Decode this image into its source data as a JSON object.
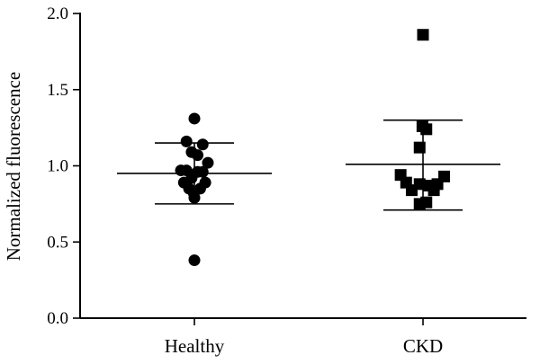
{
  "chart_data": {
    "type": "scatter",
    "title": "",
    "xlabel": "",
    "ylabel": "Normalized fluorescence",
    "ylim": [
      0,
      2.0
    ],
    "yticks": [
      0.0,
      0.5,
      1.0,
      1.5,
      2.0
    ],
    "ytick_labels": [
      "0.0",
      "0.5",
      "1.0",
      "1.5",
      "2.0"
    ],
    "categories": [
      "Healthy",
      "CKD"
    ],
    "grid": false,
    "legend": "none",
    "series": [
      {
        "category": "Healthy",
        "marker": "circle",
        "color": "#000000",
        "mean": 0.95,
        "sd_upper": 1.15,
        "sd_lower": 0.75,
        "points": [
          {
            "offset": 0.0,
            "y": 1.31
          },
          {
            "offset": -0.4,
            "y": 1.16
          },
          {
            "offset": -0.14,
            "y": 1.09
          },
          {
            "offset": 0.16,
            "y": 1.07
          },
          {
            "offset": 0.42,
            "y": 1.14
          },
          {
            "offset": 0.68,
            "y": 1.02
          },
          {
            "offset": -0.68,
            "y": 0.97
          },
          {
            "offset": -0.4,
            "y": 0.97
          },
          {
            "offset": 0.16,
            "y": 0.96
          },
          {
            "offset": 0.42,
            "y": 0.96
          },
          {
            "offset": -0.14,
            "y": 0.92
          },
          {
            "offset": -0.53,
            "y": 0.89
          },
          {
            "offset": 0.55,
            "y": 0.89
          },
          {
            "offset": -0.27,
            "y": 0.85
          },
          {
            "offset": 0.29,
            "y": 0.85
          },
          {
            "offset": -0.03,
            "y": 0.82
          },
          {
            "offset": 0.0,
            "y": 0.79
          },
          {
            "offset": 0.0,
            "y": 0.38
          }
        ]
      },
      {
        "category": "CKD",
        "marker": "square",
        "color": "#000000",
        "mean": 1.01,
        "sd_upper": 1.3,
        "sd_lower": 0.71,
        "points": [
          {
            "offset": 0.0,
            "y": 1.86
          },
          {
            "offset": -0.03,
            "y": 1.26
          },
          {
            "offset": 0.17,
            "y": 1.24
          },
          {
            "offset": -0.17,
            "y": 1.12
          },
          {
            "offset": -1.13,
            "y": 0.94
          },
          {
            "offset": -0.85,
            "y": 0.89
          },
          {
            "offset": -0.57,
            "y": 0.84
          },
          {
            "offset": -0.17,
            "y": 0.88
          },
          {
            "offset": 0.31,
            "y": 0.87
          },
          {
            "offset": 0.55,
            "y": 0.84
          },
          {
            "offset": 0.73,
            "y": 0.88
          },
          {
            "offset": 1.07,
            "y": 0.93
          },
          {
            "offset": -0.17,
            "y": 0.75
          },
          {
            "offset": 0.17,
            "y": 0.76
          }
        ]
      }
    ]
  }
}
